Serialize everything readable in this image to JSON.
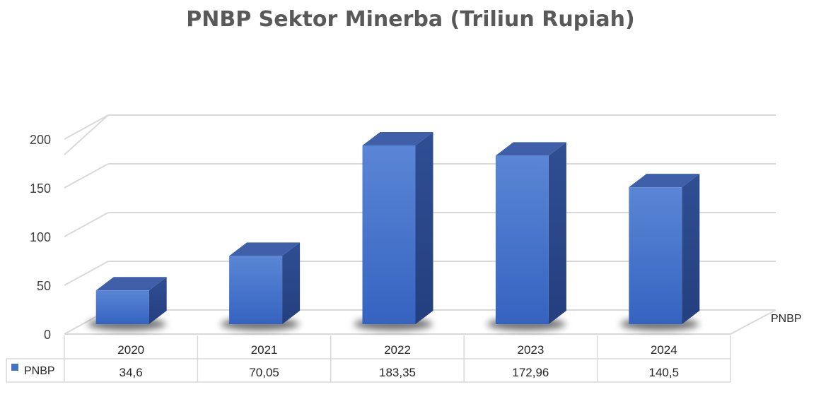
{
  "chart_data": {
    "type": "bar",
    "title": "PNBP Sektor Minerba (Triliun Rupiah)",
    "categories": [
      "2020",
      "2021",
      "2022",
      "2023",
      "2024"
    ],
    "series": [
      {
        "name": "PNBP",
        "values": [
          34.6,
          70.05,
          183.35,
          172.96,
          140.5
        ],
        "value_labels": [
          "34,6",
          "70,05",
          "183,35",
          "172,96",
          "140,5"
        ]
      }
    ],
    "yticks": [
      "0",
      "50",
      "100",
      "150",
      "200"
    ],
    "ylim": [
      0,
      200
    ],
    "depth_axis_label": "PNBP",
    "grid": true,
    "legend": "data-table",
    "colors": {
      "bar_front": "#4472C4",
      "bar_side": "#2E4D8F",
      "bar_top": "#3F5FA8",
      "grid": "#D9D9D9",
      "text": "#595959"
    }
  }
}
